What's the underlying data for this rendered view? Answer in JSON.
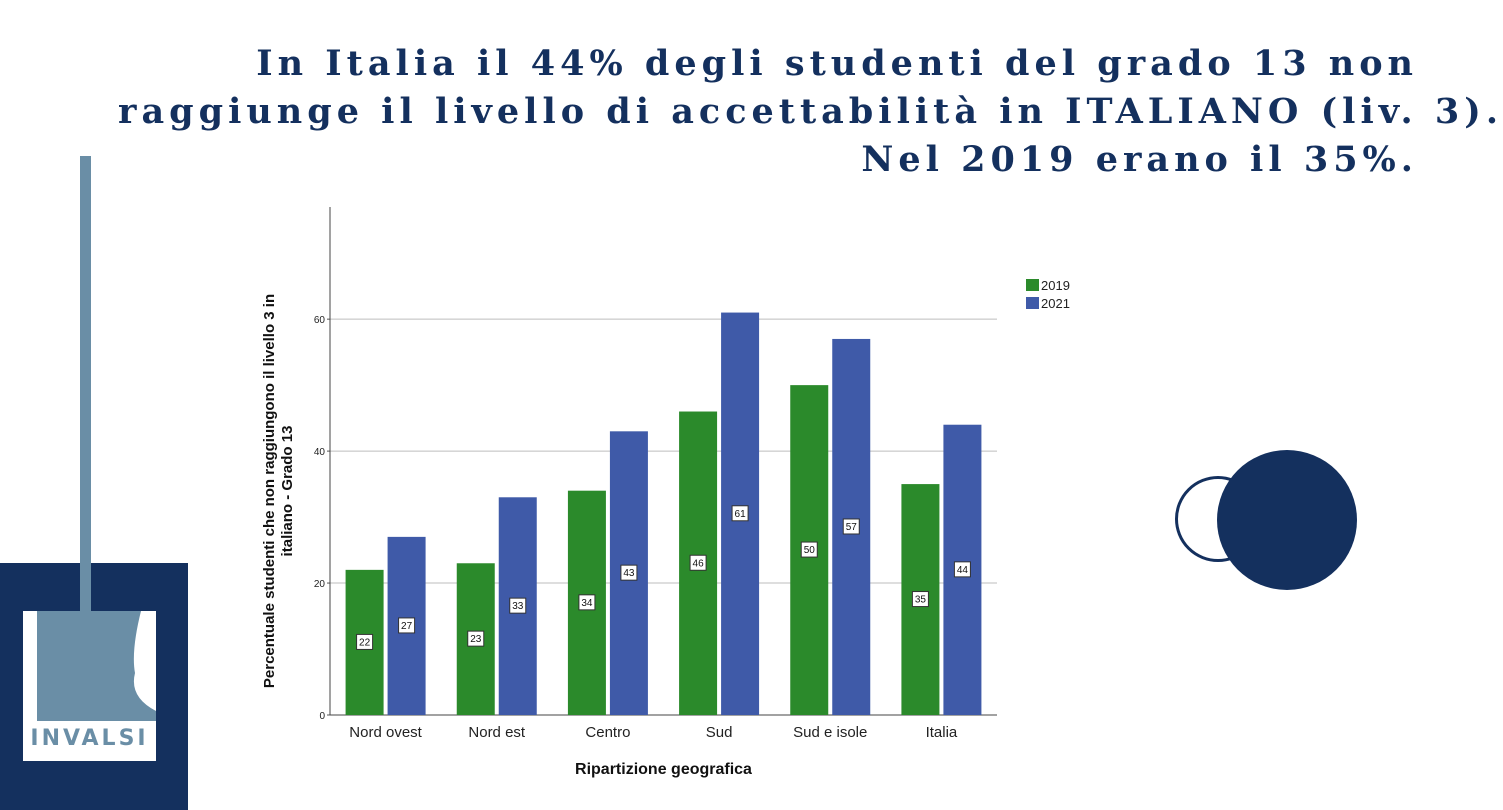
{
  "title": {
    "line1": "In Italia il 44% degli studenti del grado 13 non",
    "line2": "raggiunge il livello di accettabilità in ITALIANO (liv. 3).",
    "line3": "Nel 2019 erano il 35%."
  },
  "logo": {
    "text": "INVALSI"
  },
  "colors": {
    "navy": "#14305e",
    "steel": "#6a8ea6",
    "green": "#2b8a2b",
    "blue": "#3f5aa8"
  },
  "chart_data": {
    "type": "bar",
    "xlabel": "Ripartizione geografica",
    "ylabel_lines": [
      "Percentuale studenti che non raggiungono il livello 3 in",
      "italiano - Grado 13"
    ],
    "categories": [
      "Nord ovest",
      "Nord est",
      "Centro",
      "Sud",
      "Sud e isole",
      "Italia"
    ],
    "series": [
      {
        "name": "2019",
        "color": "#2b8a2b",
        "values": [
          22,
          23,
          34,
          46,
          50,
          35
        ],
        "labels": [
          "22",
          "23",
          "34",
          "46",
          "50",
          "35"
        ]
      },
      {
        "name": "2021",
        "color": "#3f5aa8",
        "values": [
          27,
          33,
          43,
          61,
          57,
          44
        ],
        "labels": [
          "27",
          "33",
          "43",
          "61",
          "57",
          "44"
        ]
      }
    ],
    "yticks": [
      0,
      20,
      40,
      60
    ],
    "ylim": [
      0,
      77
    ],
    "grid": true,
    "legend_position": "top-right"
  }
}
